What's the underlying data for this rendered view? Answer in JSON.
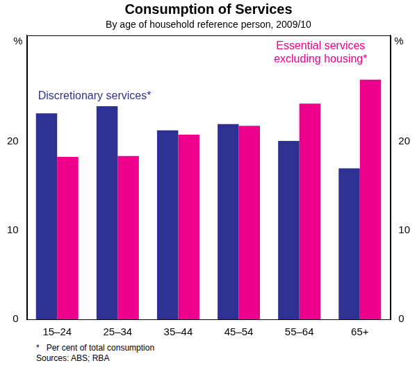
{
  "chart_data": {
    "type": "bar",
    "title": "Consumption of Services",
    "subtitle": "By age of household reference person, 2009/10",
    "categories": [
      "15–24",
      "25–34",
      "35–44",
      "45–54",
      "55–64",
      "65+"
    ],
    "series": [
      {
        "name": "Discretionary services*",
        "color": "#2e3192",
        "values": [
          23.2,
          24.0,
          21.3,
          22.0,
          20.1,
          17.0
        ]
      },
      {
        "name": "Essential services excluding housing*",
        "color": "#ec008c",
        "values": [
          18.3,
          18.4,
          20.8,
          21.8,
          24.3,
          27.0
        ]
      }
    ],
    "y_label": "%",
    "y2_label": "%",
    "ylim": [
      0,
      32
    ],
    "yticks": [
      0,
      10,
      20
    ],
    "y2lim": [
      0,
      32
    ],
    "y2ticks": [
      0,
      10,
      20
    ],
    "grid": false,
    "notes": [
      "*   Per cent of total consumption",
      "Sources: ABS; RBA"
    ]
  }
}
